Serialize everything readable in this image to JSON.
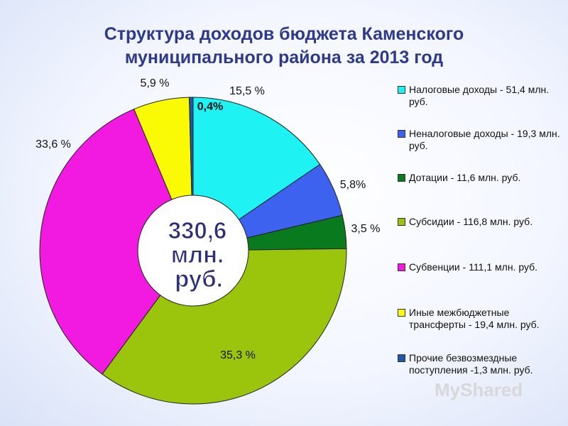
{
  "title_lines": [
    "Структура доходов бюджета Каменского",
    "муниципального района за 2013 год"
  ],
  "center_label": [
    "330,6",
    "млн.",
    "руб."
  ],
  "chart_data": {
    "type": "pie",
    "variant": "donut",
    "title": "Структура доходов бюджета Каменского муниципального района за 2013 год",
    "total_label": "330,6 млн. руб.",
    "legend_position": "right",
    "slices": [
      {
        "name": "Налоговые доходы - 51,4 млн. руб.",
        "value": 15.5,
        "label": "15,5 %",
        "color": "#1ef2f2"
      },
      {
        "name": "Неналоговые доходы - 19,3 млн. руб.",
        "value": 5.8,
        "label": "5,8%",
        "color": "#3d62f0"
      },
      {
        "name": "Дотации - 11,6 млн. руб.",
        "value": 3.5,
        "label": "3,5 %",
        "color": "#0a7a1e"
      },
      {
        "name": "Субсидии - 116,8 млн. руб.",
        "value": 35.3,
        "label": "35,3 %",
        "color": "#9bc50c"
      },
      {
        "name": "Субвенции - 111,1 млн. руб.",
        "value": 33.6,
        "label": "33,6 %",
        "color": "#f21ae0"
      },
      {
        "name": "Иные межбюджетные трансферты - 19,4 млн. руб.",
        "value": 5.9,
        "label": "5,9 %",
        "color": "#fafa05"
      },
      {
        "name": "Прочие безвозмездные поступления -1,3 млн. руб.",
        "value": 0.4,
        "label": "0,4%",
        "color": "#1f58a8"
      }
    ]
  },
  "watermark": "MyShared"
}
